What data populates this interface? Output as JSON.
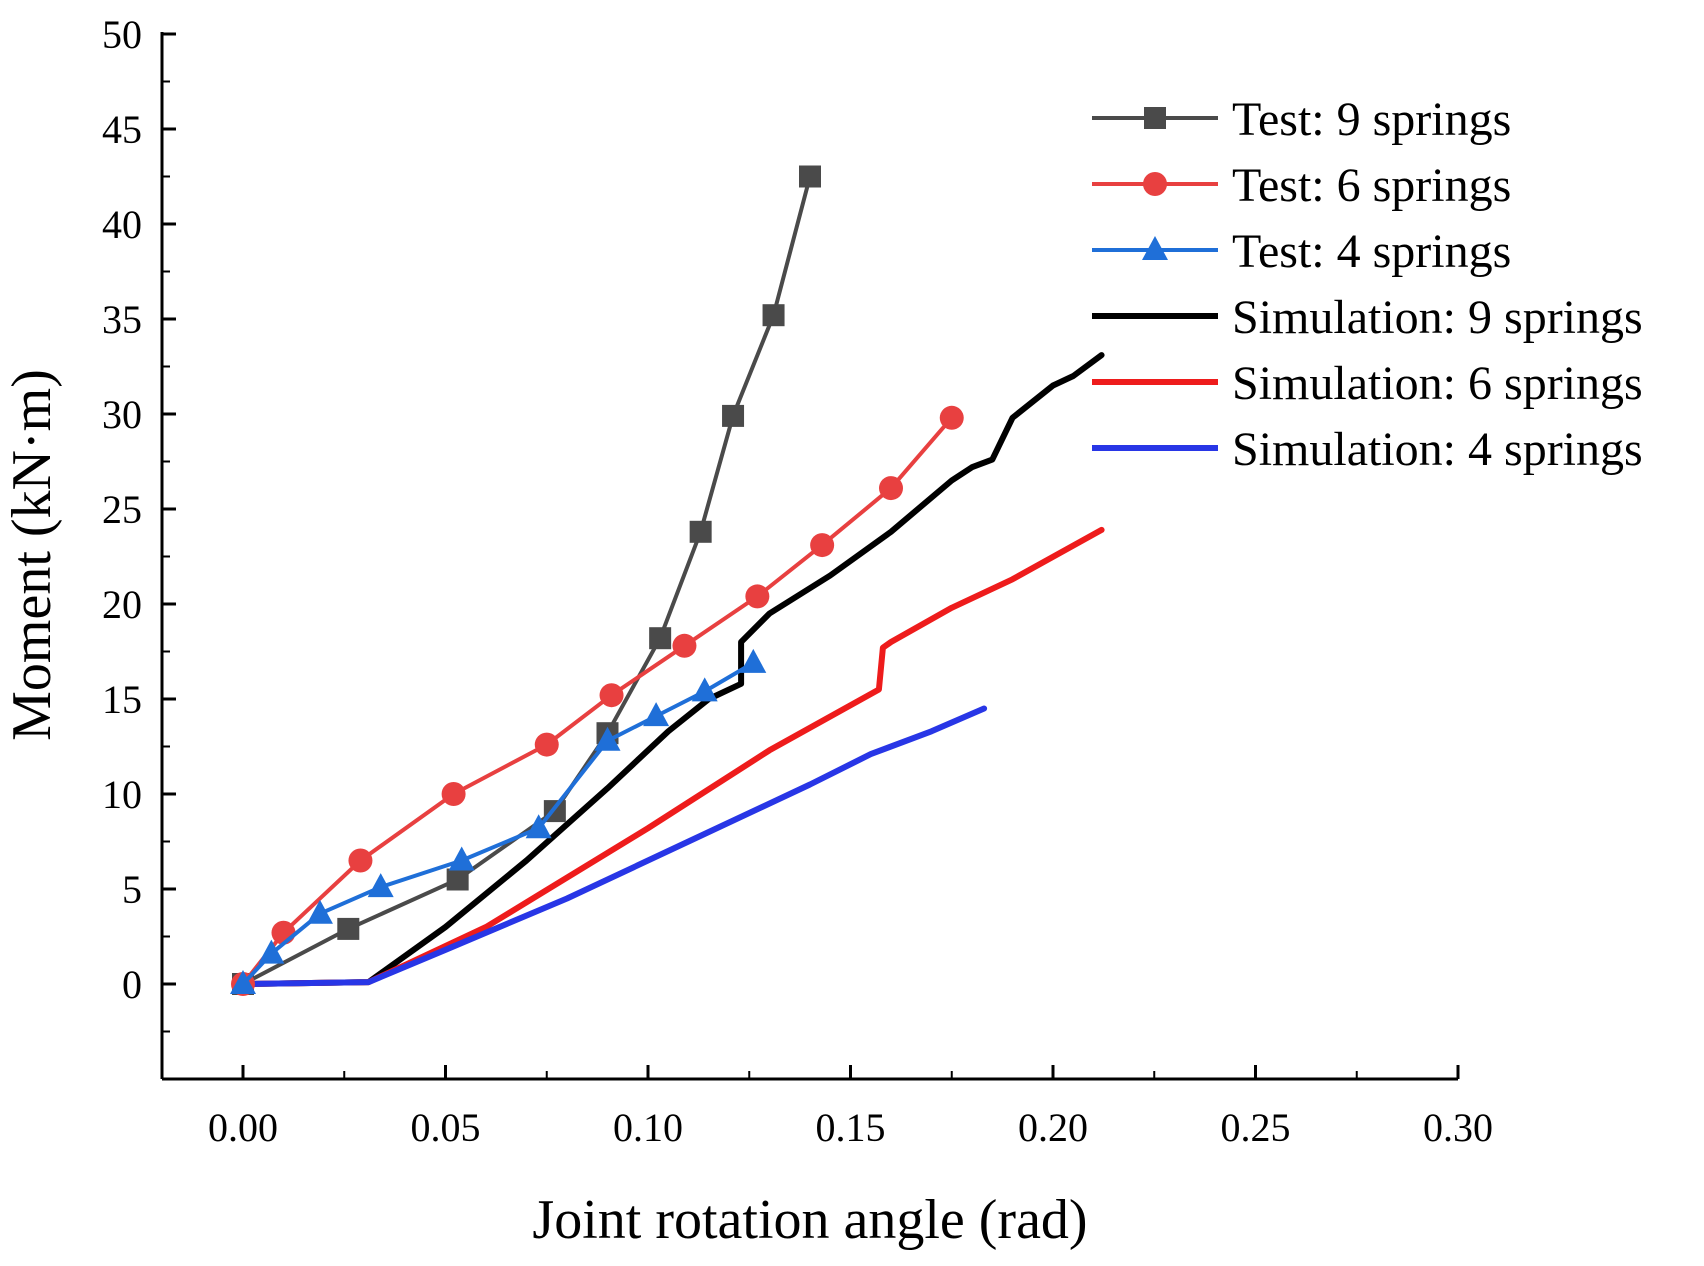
{
  "chart_data": {
    "type": "line",
    "title": "",
    "xlabel": "Joint rotation angle (rad)",
    "ylabel": "Moment (kN·m)",
    "xlim": [
      -0.02,
      0.3
    ],
    "ylim": [
      -5,
      50
    ],
    "x_ticks": [
      "0.00",
      "0.05",
      "0.10",
      "0.15",
      "0.20",
      "0.25",
      "0.30"
    ],
    "y_ticks": [
      "0",
      "5",
      "10",
      "15",
      "20",
      "25",
      "30",
      "35",
      "40",
      "45",
      "50"
    ],
    "grid": false,
    "legend_position": "top-right",
    "series": [
      {
        "name": "Test: 9 springs",
        "color": "#4a4a4a",
        "marker": "square",
        "x": [
          0.0,
          0.026,
          0.053,
          0.077,
          0.09,
          0.103,
          0.113,
          0.121,
          0.131,
          0.14
        ],
        "y": [
          0.0,
          2.9,
          5.5,
          9.1,
          13.2,
          18.2,
          23.8,
          29.9,
          35.2,
          42.5
        ]
      },
      {
        "name": "Test: 6 springs",
        "color": "#e84040",
        "marker": "circle",
        "x": [
          0.0,
          0.01,
          0.029,
          0.052,
          0.075,
          0.091,
          0.109,
          0.127,
          0.143,
          0.16,
          0.175
        ],
        "y": [
          0.0,
          2.7,
          6.5,
          10.0,
          12.6,
          15.2,
          17.8,
          20.4,
          23.1,
          26.1,
          29.8
        ]
      },
      {
        "name": "Test: 4 springs",
        "color": "#1f6fd8",
        "marker": "triangle",
        "x": [
          0.0,
          0.007,
          0.019,
          0.034,
          0.054,
          0.073,
          0.09,
          0.102,
          0.114,
          0.126
        ],
        "y": [
          0.0,
          1.6,
          3.7,
          5.1,
          6.5,
          8.2,
          12.8,
          14.1,
          15.4,
          16.9
        ]
      },
      {
        "name": "Simulation: 9 springs",
        "color": "#000000",
        "marker": "none",
        "x": [
          0.0,
          0.031,
          0.05,
          0.07,
          0.09,
          0.105,
          0.115,
          0.123,
          0.123,
          0.13,
          0.145,
          0.16,
          0.175,
          0.18,
          0.185,
          0.19,
          0.2,
          0.205,
          0.212
        ],
        "y": [
          0.0,
          0.1,
          3.0,
          6.5,
          10.3,
          13.3,
          15.0,
          15.8,
          18.0,
          19.5,
          21.5,
          23.8,
          26.5,
          27.2,
          27.6,
          29.8,
          31.5,
          32.0,
          33.1
        ]
      },
      {
        "name": "Simulation: 6 springs",
        "color": "#ee1c1c",
        "marker": "none",
        "x": [
          0.0,
          0.031,
          0.06,
          0.1,
          0.13,
          0.157,
          0.158,
          0.16,
          0.175,
          0.19,
          0.212
        ],
        "y": [
          0.0,
          0.1,
          3.0,
          8.2,
          12.3,
          15.5,
          17.7,
          18.0,
          19.8,
          21.3,
          23.9
        ]
      },
      {
        "name": "Simulation: 4 springs",
        "color": "#2836e6",
        "marker": "none",
        "x": [
          0.0,
          0.031,
          0.05,
          0.08,
          0.11,
          0.14,
          0.155,
          0.17,
          0.183
        ],
        "y": [
          0.0,
          0.1,
          1.8,
          4.5,
          7.5,
          10.5,
          12.1,
          13.3,
          14.5
        ]
      }
    ]
  }
}
